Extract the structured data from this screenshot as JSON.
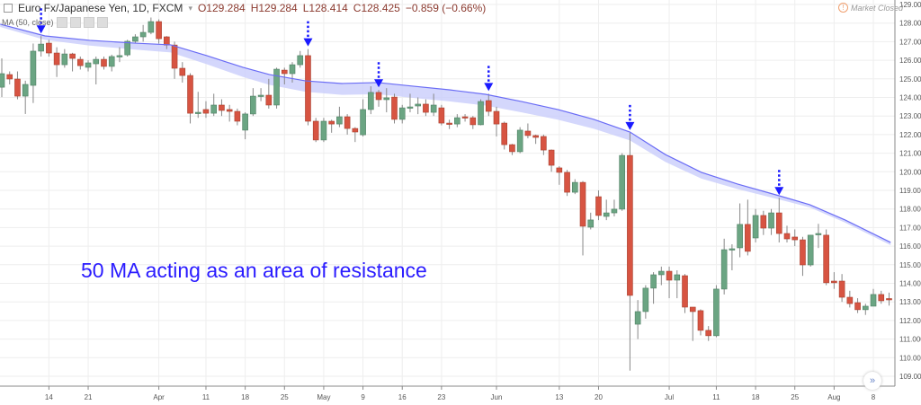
{
  "header": {
    "symbol": "Euro Fx/Japanese Yen, 1D, FXCM",
    "open": "O129.284",
    "high": "H129.284",
    "low": "L128.414",
    "close": "C128.425",
    "change": "−0.859 (−0.66%)"
  },
  "indicator_label": "MA (50, close)",
  "market_status": "Market Closed",
  "annotation": "50 MA acting as an area of resistance",
  "colors": {
    "up": "#6ba583",
    "down": "#d75442",
    "ma": "#6a6cf5",
    "ma_band": "#c9cdfb",
    "arrow": "#1a1aff"
  },
  "chart_data": {
    "type": "candlestick",
    "title": "",
    "ylim": [
      108.3,
      129.2
    ],
    "yticks": [
      "129.000",
      "128.000",
      "127.000",
      "126.000",
      "125.000",
      "124.000",
      "123.000",
      "122.000",
      "121.000",
      "120.000",
      "119.000",
      "118.000",
      "117.000",
      "116.000",
      "115.000",
      "114.000",
      "113.000",
      "112.000",
      "111.000",
      "110.000",
      "109.000"
    ],
    "xticks": [
      {
        "label": "14",
        "candle": 7
      },
      {
        "label": "21",
        "candle": 12
      },
      {
        "label": "Apr",
        "candle": 21
      },
      {
        "label": "11",
        "candle": 27
      },
      {
        "label": "18",
        "candle": 32
      },
      {
        "label": "25",
        "candle": 37
      },
      {
        "label": "May",
        "candle": 42
      },
      {
        "label": "9",
        "candle": 47
      },
      {
        "label": "16",
        "candle": 52
      },
      {
        "label": "23",
        "candle": 57
      },
      {
        "label": "Jun",
        "candle": 64
      },
      {
        "label": "13",
        "candle": 72
      },
      {
        "label": "20",
        "candle": 77
      },
      {
        "label": "Jul",
        "candle": 86
      },
      {
        "label": "11",
        "candle": 92
      },
      {
        "label": "18",
        "candle": 97
      },
      {
        "label": "25",
        "candle": 102
      },
      {
        "label": "Aug",
        "candle": 107
      },
      {
        "label": "8",
        "candle": 112
      }
    ],
    "grid": true,
    "candles_ohlc": [
      [
        124.55,
        126.1,
        124.02,
        125.28
      ],
      [
        125.23,
        125.4,
        124.7,
        124.99
      ],
      [
        124.99,
        125.4,
        123.9,
        124.07
      ],
      [
        124.07,
        124.9,
        123.11,
        124.7
      ],
      [
        124.65,
        126.9,
        123.7,
        126.49
      ],
      [
        126.49,
        127.3,
        126.2,
        126.87
      ],
      [
        126.92,
        127.1,
        126.2,
        126.39
      ],
      [
        126.39,
        126.7,
        125.1,
        125.76
      ],
      [
        125.76,
        126.6,
        125.6,
        126.34
      ],
      [
        126.34,
        126.4,
        125.4,
        126.1
      ],
      [
        126.05,
        126.2,
        125.5,
        125.71
      ],
      [
        125.62,
        126.0,
        125.4,
        125.86
      ],
      [
        125.81,
        126.2,
        124.7,
        126.05
      ],
      [
        126.05,
        126.2,
        125.5,
        125.67
      ],
      [
        125.67,
        126.3,
        125.4,
        126.2
      ],
      [
        126.2,
        126.7,
        125.9,
        126.25
      ],
      [
        126.29,
        127.1,
        126.2,
        127.02
      ],
      [
        127.02,
        127.4,
        126.9,
        127.26
      ],
      [
        127.26,
        127.9,
        127.0,
        127.5
      ],
      [
        127.5,
        128.3,
        127.4,
        128.08
      ],
      [
        128.08,
        128.2,
        126.9,
        127.16
      ],
      [
        127.26,
        127.3,
        126.6,
        126.82
      ],
      [
        126.82,
        127.0,
        125.0,
        125.57
      ],
      [
        125.57,
        125.9,
        124.8,
        125.18
      ],
      [
        125.18,
        125.3,
        122.6,
        123.15
      ],
      [
        123.15,
        124.3,
        122.9,
        123.2
      ],
      [
        123.35,
        123.8,
        122.9,
        123.15
      ],
      [
        123.15,
        124.2,
        123.0,
        123.59
      ],
      [
        123.59,
        123.9,
        123.0,
        123.3
      ],
      [
        123.35,
        123.6,
        122.7,
        123.25
      ],
      [
        123.25,
        123.4,
        122.5,
        122.72
      ],
      [
        122.24,
        123.2,
        121.75,
        123.11
      ],
      [
        123.11,
        124.5,
        123.0,
        124.07
      ],
      [
        124.07,
        124.5,
        123.8,
        124.12
      ],
      [
        124.12,
        125.0,
        123.4,
        123.59
      ],
      [
        123.59,
        125.6,
        123.4,
        125.52
      ],
      [
        125.47,
        125.6,
        124.7,
        125.28
      ],
      [
        125.28,
        125.9,
        124.8,
        125.76
      ],
      [
        125.76,
        126.5,
        125.6,
        126.25
      ],
      [
        126.25,
        126.6,
        122.5,
        122.72
      ],
      [
        122.72,
        122.9,
        121.6,
        121.71
      ],
      [
        121.71,
        122.9,
        121.6,
        122.72
      ],
      [
        122.72,
        122.8,
        122.1,
        122.57
      ],
      [
        122.57,
        123.5,
        122.4,
        122.96
      ],
      [
        122.96,
        123.1,
        122.0,
        122.33
      ],
      [
        122.33,
        122.4,
        121.6,
        122.14
      ],
      [
        121.99,
        123.9,
        121.9,
        123.35
      ],
      [
        123.35,
        124.6,
        123.1,
        124.27
      ],
      [
        124.27,
        124.4,
        123.5,
        123.88
      ],
      [
        123.88,
        124.5,
        123.2,
        123.98
      ],
      [
        124.02,
        124.2,
        122.6,
        122.82
      ],
      [
        122.82,
        123.6,
        122.6,
        123.44
      ],
      [
        123.44,
        124.2,
        123.2,
        123.49
      ],
      [
        123.54,
        124.0,
        123.1,
        123.64
      ],
      [
        123.64,
        123.9,
        123.0,
        123.2
      ],
      [
        123.2,
        124.2,
        123.0,
        123.59
      ],
      [
        123.44,
        123.6,
        122.5,
        122.62
      ],
      [
        122.62,
        122.8,
        122.3,
        122.57
      ],
      [
        122.57,
        123.1,
        122.4,
        122.91
      ],
      [
        122.96,
        123.1,
        122.7,
        122.91
      ],
      [
        122.91,
        123.0,
        122.3,
        122.53
      ],
      [
        122.53,
        123.9,
        122.5,
        123.78
      ],
      [
        123.83,
        124.2,
        123.0,
        123.25
      ],
      [
        123.25,
        123.5,
        121.9,
        122.57
      ],
      [
        122.62,
        122.7,
        121.2,
        121.46
      ],
      [
        121.46,
        121.5,
        120.9,
        121.08
      ],
      [
        121.08,
        122.4,
        121.0,
        122.24
      ],
      [
        122.19,
        122.6,
        121.8,
        121.95
      ],
      [
        121.95,
        122.0,
        121.5,
        121.85
      ],
      [
        121.9,
        122.0,
        120.9,
        121.17
      ],
      [
        121.17,
        121.2,
        120.0,
        120.35
      ],
      [
        120.21,
        120.3,
        119.3,
        119.97
      ],
      [
        119.97,
        120.1,
        118.7,
        118.9
      ],
      [
        118.9,
        119.6,
        118.8,
        119.43
      ],
      [
        119.43,
        119.5,
        115.5,
        117.07
      ],
      [
        117.02,
        117.8,
        116.9,
        117.41
      ],
      [
        118.66,
        119.0,
        117.4,
        117.65
      ],
      [
        117.6,
        118.5,
        117.4,
        117.79
      ],
      [
        117.79,
        118.5,
        117.6,
        117.99
      ],
      [
        117.99,
        121.0,
        117.9,
        120.88
      ],
      [
        120.88,
        122.1,
        109.3,
        113.35
      ],
      [
        111.8,
        113.1,
        111.0,
        112.48
      ],
      [
        112.48,
        113.9,
        112.1,
        113.74
      ],
      [
        113.74,
        114.6,
        112.9,
        114.46
      ],
      [
        114.46,
        114.9,
        113.9,
        114.65
      ],
      [
        114.65,
        114.9,
        113.2,
        114.17
      ],
      [
        114.17,
        114.7,
        113.2,
        114.46
      ],
      [
        114.41,
        114.5,
        112.4,
        112.72
      ],
      [
        112.72,
        112.7,
        110.9,
        112.48
      ],
      [
        112.53,
        112.6,
        111.2,
        111.47
      ],
      [
        111.47,
        111.7,
        110.9,
        111.18
      ],
      [
        111.18,
        113.9,
        111.1,
        113.69
      ],
      [
        113.69,
        116.4,
        113.4,
        115.81
      ],
      [
        115.81,
        116.1,
        114.7,
        115.86
      ],
      [
        115.91,
        118.3,
        115.4,
        117.17
      ],
      [
        117.17,
        118.5,
        115.5,
        115.72
      ],
      [
        116.44,
        118.0,
        116.2,
        117.65
      ],
      [
        117.65,
        117.9,
        116.6,
        116.97
      ],
      [
        116.97,
        118.0,
        116.6,
        117.79
      ],
      [
        117.79,
        118.6,
        116.2,
        116.68
      ],
      [
        116.68,
        117.1,
        116.2,
        116.39
      ],
      [
        116.49,
        116.9,
        116.0,
        116.34
      ],
      [
        116.34,
        116.5,
        114.4,
        114.99
      ],
      [
        114.99,
        116.6,
        114.9,
        116.59
      ],
      [
        116.63,
        117.2,
        115.9,
        116.68
      ],
      [
        116.59,
        116.9,
        113.9,
        114.03
      ],
      [
        114.12,
        114.6,
        113.7,
        114.03
      ],
      [
        114.12,
        114.5,
        113.0,
        113.25
      ],
      [
        113.25,
        113.6,
        112.7,
        112.91
      ],
      [
        112.96,
        113.2,
        112.4,
        112.58
      ],
      [
        112.58,
        112.9,
        112.3,
        112.77
      ],
      [
        112.77,
        113.7,
        112.9,
        113.4
      ],
      [
        113.4,
        113.6,
        112.9,
        113.06
      ],
      [
        113.18,
        113.5,
        112.8,
        113.16
      ]
    ],
    "ma50": [
      [
        0.8,
        127.94
      ],
      [
        6.5,
        127.31
      ],
      [
        12.2,
        127.07
      ],
      [
        18,
        126.92
      ],
      [
        22.5,
        126.83
      ],
      [
        27.1,
        126.25
      ],
      [
        31.7,
        125.62
      ],
      [
        35.1,
        125.23
      ],
      [
        39.7,
        124.89
      ],
      [
        44.3,
        124.75
      ],
      [
        48.9,
        124.8
      ],
      [
        53.5,
        124.6
      ],
      [
        58,
        124.41
      ],
      [
        62.6,
        124.17
      ],
      [
        67.2,
        123.78
      ],
      [
        71.8,
        123.35
      ],
      [
        76.4,
        122.82
      ],
      [
        81,
        122.14
      ],
      [
        85.5,
        120.93
      ],
      [
        90.1,
        119.97
      ],
      [
        94.7,
        119.34
      ],
      [
        100,
        118.71
      ],
      [
        103.9,
        118.23
      ],
      [
        108.4,
        117.41
      ],
      [
        114.2,
        116.2
      ]
    ],
    "resistance_arrows_at_candle": [
      6,
      40,
      49,
      63,
      81,
      100
    ]
  }
}
